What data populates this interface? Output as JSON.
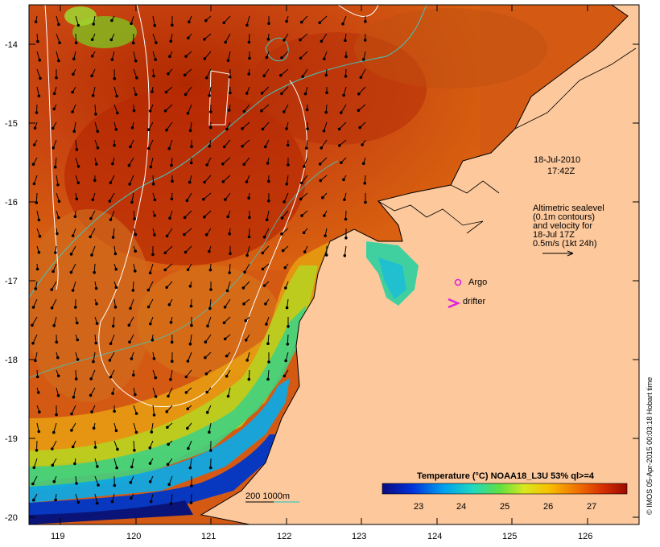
{
  "map": {
    "datetime_line1": "18-Jul-2010",
    "datetime_line2": "17:42Z",
    "legend_note": [
      "Altimetric sealevel",
      "(0.1m contours)",
      "and velocity for",
      "18-Jul 17Z",
      "0.5m/s (1kt 24h)"
    ],
    "argo_label": "Argo",
    "drifter_label": "drifter",
    "depth_label": "200  1000m",
    "colorbar_title": "Temperature (°C) NOAA18_L3U 53% ql>=4",
    "colorbar_ticks": [
      "23",
      "24",
      "25",
      "26",
      "27"
    ],
    "credit": "© IMOS 05-Apr-2015 00:03:18 Hobart time",
    "lat_ticks": [
      "-14",
      "-15",
      "-16",
      "-17",
      "-18",
      "-19",
      "-20"
    ],
    "lon_ticks": [
      "119",
      "120",
      "121",
      "122",
      "123",
      "124",
      "125",
      "126"
    ],
    "colors": {
      "land": "#fcc89c",
      "contour_200": "#40c8c0",
      "contour_sealevel": "#ffffff",
      "argo": "#e020e0",
      "drifter": "#e020e0"
    },
    "icons": [
      "argo-circle-icon",
      "drifter-chevron-icon",
      "velocity-arrow-icon"
    ]
  }
}
